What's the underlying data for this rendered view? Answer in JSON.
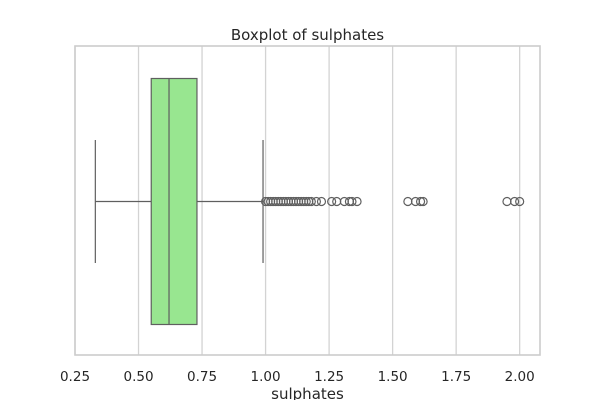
{
  "chart_data": {
    "type": "boxplot",
    "title": "Boxplot of sulphates",
    "xlabel": "sulphates",
    "ylabel": "",
    "orientation": "horizontal",
    "xlim": [
      0.25,
      2.08
    ],
    "xticks": [
      0.25,
      0.5,
      0.75,
      1.0,
      1.25,
      1.5,
      1.75,
      2.0
    ],
    "xtick_labels": [
      "0.25",
      "0.50",
      "0.75",
      "1.00",
      "1.25",
      "1.50",
      "1.75",
      "2.00"
    ],
    "grid": true,
    "box": {
      "whisker_low": 0.33,
      "q1": 0.55,
      "median": 0.62,
      "q3": 0.73,
      "whisker_high": 0.99
    },
    "outliers": [
      1.0,
      1.01,
      1.02,
      1.03,
      1.04,
      1.05,
      1.06,
      1.07,
      1.08,
      1.09,
      1.1,
      1.11,
      1.12,
      1.13,
      1.14,
      1.15,
      1.16,
      1.17,
      1.18,
      1.2,
      1.22,
      1.26,
      1.28,
      1.31,
      1.33,
      1.34,
      1.36,
      1.56,
      1.59,
      1.61,
      1.62,
      1.95,
      1.98,
      2.0
    ],
    "colors": {
      "box_fill": "#98e690",
      "line": "#5f5f5f",
      "grid": "#d3d3d3",
      "spine": "#cccccc"
    }
  }
}
